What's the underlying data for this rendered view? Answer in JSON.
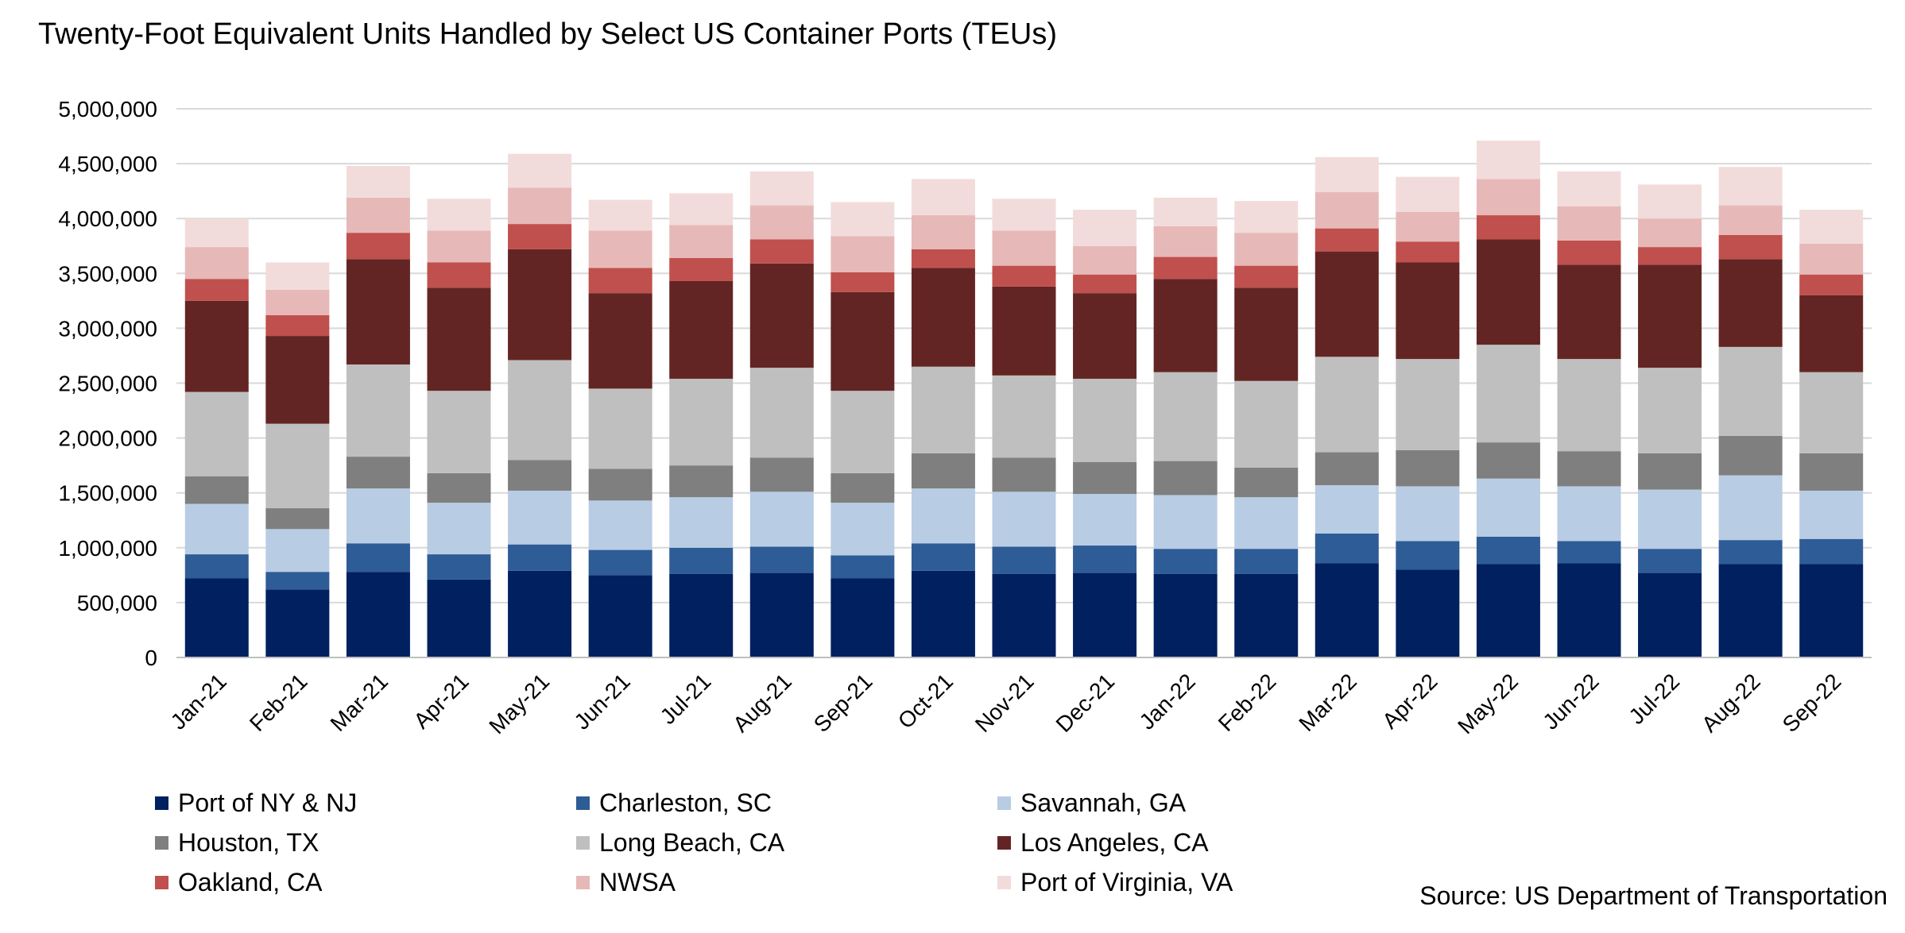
{
  "chart_data": {
    "type": "bar",
    "stacked": true,
    "title": "Twenty-Foot Equivalent Units Handled by Select US Container Ports (TEUs)",
    "source": "Source: US Department of Transportation",
    "ylim": [
      0,
      5000000
    ],
    "y_ticks": [
      "0",
      "500,000",
      "1,000,000",
      "1,500,000",
      "2,000,000",
      "2,500,000",
      "3,000,000",
      "3,500,000",
      "4,000,000",
      "4,500,000",
      "5,000,000"
    ],
    "grid": true,
    "legend_position": "bottom",
    "categories": [
      "Jan-21",
      "Feb-21",
      "Mar-21",
      "Apr-21",
      "May-21",
      "Jun-21",
      "Jul-21",
      "Aug-21",
      "Sep-21",
      "Oct-21",
      "Nov-21",
      "Dec-21",
      "Jan-22",
      "Feb-22",
      "Mar-22",
      "Apr-22",
      "May-22",
      "Jun-22",
      "Jul-22",
      "Aug-22",
      "Sep-22"
    ],
    "series": [
      {
        "name": "Port of NY & NJ",
        "color": "#002060",
        "values": [
          720000,
          620000,
          780000,
          710000,
          790000,
          750000,
          760000,
          770000,
          720000,
          790000,
          760000,
          770000,
          760000,
          760000,
          860000,
          800000,
          850000,
          860000,
          770000,
          850000,
          850000
        ]
      },
      {
        "name": "Charleston, SC",
        "color": "#2E5C96",
        "values": [
          220000,
          160000,
          260000,
          230000,
          240000,
          230000,
          240000,
          240000,
          210000,
          250000,
          250000,
          250000,
          230000,
          230000,
          270000,
          260000,
          250000,
          200000,
          220000,
          220000,
          230000
        ]
      },
      {
        "name": "Savannah, GA",
        "color": "#B8CCE4",
        "values": [
          460000,
          390000,
          500000,
          470000,
          490000,
          450000,
          460000,
          500000,
          480000,
          500000,
          500000,
          470000,
          490000,
          470000,
          440000,
          500000,
          530000,
          500000,
          540000,
          590000,
          440000
        ]
      },
      {
        "name": "Houston, TX",
        "color": "#7F7F7F",
        "values": [
          250000,
          190000,
          290000,
          270000,
          280000,
          290000,
          290000,
          310000,
          270000,
          320000,
          310000,
          290000,
          310000,
          270000,
          300000,
          330000,
          330000,
          320000,
          330000,
          360000,
          340000
        ]
      },
      {
        "name": "Long Beach, CA",
        "color": "#BFBFBF",
        "values": [
          770000,
          770000,
          840000,
          750000,
          910000,
          730000,
          790000,
          820000,
          750000,
          790000,
          750000,
          760000,
          810000,
          790000,
          870000,
          830000,
          890000,
          840000,
          780000,
          810000,
          740000
        ]
      },
      {
        "name": "Los Angeles, CA",
        "color": "#632523",
        "values": [
          830000,
          800000,
          960000,
          940000,
          1010000,
          870000,
          890000,
          950000,
          900000,
          900000,
          810000,
          780000,
          850000,
          850000,
          960000,
          880000,
          960000,
          860000,
          940000,
          800000,
          700000
        ]
      },
      {
        "name": "Oakland, CA",
        "color": "#C0504D",
        "values": [
          200000,
          190000,
          240000,
          230000,
          230000,
          230000,
          210000,
          220000,
          180000,
          170000,
          190000,
          170000,
          200000,
          200000,
          210000,
          190000,
          220000,
          220000,
          160000,
          220000,
          190000
        ]
      },
      {
        "name": "NWSA",
        "color": "#E6B9B8",
        "values": [
          290000,
          230000,
          320000,
          290000,
          330000,
          340000,
          300000,
          310000,
          330000,
          310000,
          320000,
          260000,
          280000,
          300000,
          330000,
          270000,
          330000,
          310000,
          260000,
          270000,
          280000
        ]
      },
      {
        "name": "Port of Virginia, VA",
        "color": "#F2DCDB",
        "values": [
          260000,
          250000,
          290000,
          290000,
          310000,
          280000,
          290000,
          310000,
          310000,
          330000,
          290000,
          330000,
          260000,
          290000,
          320000,
          320000,
          350000,
          320000,
          310000,
          350000,
          310000
        ]
      }
    ]
  }
}
